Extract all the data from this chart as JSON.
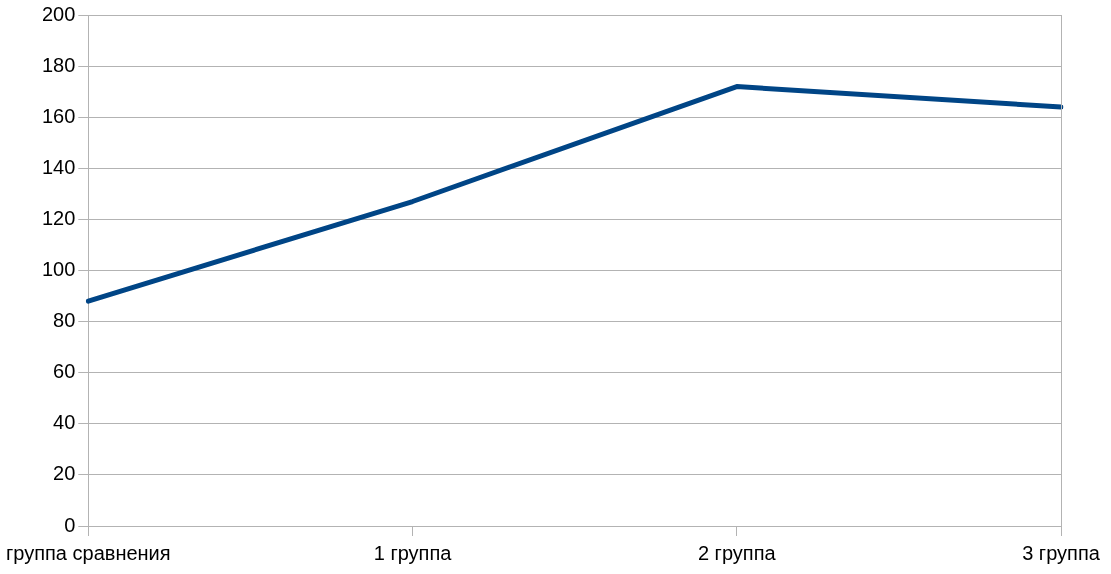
{
  "chart_data": {
    "type": "line",
    "categories": [
      "группа сравнения",
      "1 группа",
      "2 группа",
      "3 группа"
    ],
    "series": [
      {
        "color": "#004586",
        "values": [
          88,
          127,
          172,
          164
        ]
      }
    ],
    "ylim": [
      0,
      200
    ],
    "yticks": [
      0,
      20,
      40,
      60,
      80,
      100,
      120,
      140,
      160,
      180,
      200
    ],
    "grid": "y",
    "legend": false,
    "marker": "none"
  }
}
